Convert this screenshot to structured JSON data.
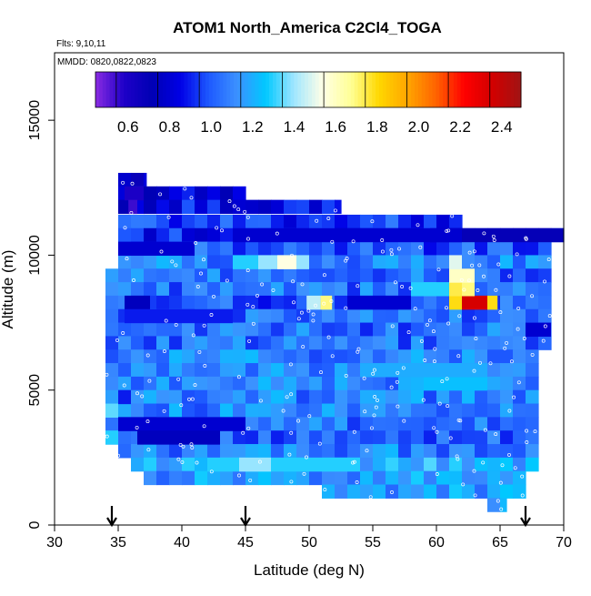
{
  "chart_data": {
    "type": "heatmap",
    "title": "ATOM1 North_America C2Cl4_TOGA",
    "annotations": [
      "Flts: 9,10,11",
      "MMDD: 0820,0822,0823"
    ],
    "xlabel": "Latitude (deg N)",
    "ylabel": "Altitude (m)",
    "xlim": [
      30,
      70
    ],
    "ylim": [
      0,
      17500
    ],
    "xticks": [
      30,
      35,
      40,
      45,
      50,
      55,
      60,
      65,
      70
    ],
    "yticks": [
      0,
      5000,
      10000,
      15000
    ],
    "grid": false,
    "colorbar": {
      "placement": "top",
      "min": 0.5,
      "max": 2.55,
      "ticks": [
        "0.6",
        "0.8",
        "1.0",
        "1.2",
        "1.4",
        "1.6",
        "1.8",
        "2.0",
        "2.2",
        "2.4"
      ],
      "tick_values": [
        0.6,
        0.8,
        1.0,
        1.2,
        1.4,
        1.6,
        1.8,
        2.0,
        2.2,
        2.4
      ],
      "colors": [
        "#8a2be2",
        "#1e00c8",
        "#0000b4",
        "#0000e6",
        "#1e5aff",
        "#3c91ff",
        "#00c8ff",
        "#a0e6ff",
        "#ffffe6",
        "#ffff96",
        "#ffd700",
        "#ffa500",
        "#ff6400",
        "#ff0000",
        "#d20000",
        "#a01414"
      ]
    },
    "arrows_at_latitude": [
      34.5,
      45,
      67
    ],
    "altitude_bands": [
      {
        "alt": 12800,
        "lat": [
          35,
          37.2
        ],
        "value": 0.8
      },
      {
        "alt": 12300,
        "lat": [
          35,
          45
        ],
        "value": 0.9
      },
      {
        "alt": 11800,
        "lat": [
          35,
          52.5
        ],
        "value": 0.9
      },
      {
        "alt": 11250,
        "lat": [
          35,
          62
        ],
        "value": 1.0
      },
      {
        "alt": 10750,
        "lat": [
          35,
          70
        ],
        "value": 0.95
      },
      {
        "alt": 10250,
        "lat": [
          35,
          69
        ],
        "value": 1.05
      },
      {
        "alt": 9750,
        "lat": [
          35,
          69
        ],
        "value": 1.15
      },
      {
        "alt": 9250,
        "lat": [
          34,
          69
        ],
        "value": 1.1
      },
      {
        "alt": 8750,
        "lat": [
          34,
          69
        ],
        "value": 1.1
      },
      {
        "alt": 8250,
        "lat": [
          34,
          69
        ],
        "value": 1.05
      },
      {
        "alt": 7750,
        "lat": [
          34,
          69
        ],
        "value": 1.1
      },
      {
        "alt": 7250,
        "lat": [
          34,
          69
        ],
        "value": 1.1
      },
      {
        "alt": 6750,
        "lat": [
          34,
          69
        ],
        "value": 1.1
      },
      {
        "alt": 6250,
        "lat": [
          34,
          68
        ],
        "value": 1.15
      },
      {
        "alt": 5750,
        "lat": [
          34,
          68
        ],
        "value": 1.15
      },
      {
        "alt": 5250,
        "lat": [
          34,
          68
        ],
        "value": 1.15
      },
      {
        "alt": 4750,
        "lat": [
          34,
          68
        ],
        "value": 1.15
      },
      {
        "alt": 4250,
        "lat": [
          34,
          68
        ],
        "value": 1.15
      },
      {
        "alt": 3750,
        "lat": [
          34,
          68
        ],
        "value": 1.1
      },
      {
        "alt": 3250,
        "lat": [
          34,
          68
        ],
        "value": 1.05
      },
      {
        "alt": 2750,
        "lat": [
          35,
          68
        ],
        "value": 1.15
      },
      {
        "alt": 2250,
        "lat": [
          36,
          68
        ],
        "value": 1.25
      },
      {
        "alt": 1750,
        "lat": [
          37,
          67
        ],
        "value": 1.2
      },
      {
        "alt": 1250,
        "lat": [
          51,
          67
        ],
        "value": 1.2
      },
      {
        "alt": 750,
        "lat": [
          64,
          65.5
        ],
        "value": 1.2
      }
    ],
    "highlights": [
      {
        "alt": 8250,
        "lat": [
          62,
          64
        ],
        "value": 2.4
      },
      {
        "alt": 8250,
        "lat": [
          61,
          62
        ],
        "value": 1.85
      },
      {
        "alt": 8250,
        "lat": [
          64,
          64.8
        ],
        "value": 1.85
      },
      {
        "alt": 8750,
        "lat": [
          61,
          62
        ],
        "value": 1.8
      },
      {
        "alt": 8750,
        "lat": [
          62,
          63
        ],
        "value": 1.75
      },
      {
        "alt": 9250,
        "lat": [
          61,
          63
        ],
        "value": 1.65
      },
      {
        "alt": 9750,
        "lat": [
          61,
          62
        ],
        "value": 1.55
      },
      {
        "alt": 8750,
        "lat": [
          58,
          61
        ],
        "value": 1.35
      },
      {
        "alt": 8250,
        "lat": [
          49.8,
          50.9
        ],
        "value": 1.5
      },
      {
        "alt": 8250,
        "lat": [
          50.9,
          51.8
        ],
        "value": 1.75
      },
      {
        "alt": 9750,
        "lat": [
          46,
          50
        ],
        "value": 1.45
      },
      {
        "alt": 9750,
        "lat": [
          47.5,
          49
        ],
        "value": 1.6
      },
      {
        "alt": 9750,
        "lat": [
          44,
          46
        ],
        "value": 1.35
      },
      {
        "alt": 2250,
        "lat": [
          42,
          54
        ],
        "value": 1.35
      },
      {
        "alt": 2250,
        "lat": [
          44.5,
          47
        ],
        "value": 1.45
      },
      {
        "alt": 5250,
        "lat": [
          59,
          64
        ],
        "value": 1.3
      },
      {
        "alt": 5750,
        "lat": [
          54,
          64
        ],
        "value": 1.25
      },
      {
        "alt": 12300,
        "lat": [
          35.5,
          37
        ],
        "value": 0.65
      },
      {
        "alt": 11800,
        "lat": [
          35.8,
          36.5
        ],
        "value": 0.6
      },
      {
        "alt": 10750,
        "lat": [
          59.5,
          70
        ],
        "value": 0.75
      },
      {
        "alt": 10250,
        "lat": [
          35,
          41
        ],
        "value": 0.85
      },
      {
        "alt": 10750,
        "lat": [
          44,
          62
        ],
        "value": 0.85
      },
      {
        "alt": 8250,
        "lat": [
          35.5,
          37.5
        ],
        "value": 0.8
      },
      {
        "alt": 7750,
        "lat": [
          35.5,
          44
        ],
        "value": 0.95
      },
      {
        "alt": 8250,
        "lat": [
          53,
          58
        ],
        "value": 0.85
      },
      {
        "alt": 7250,
        "lat": [
          67,
          69
        ],
        "value": 0.85
      },
      {
        "alt": 3750,
        "lat": [
          35,
          45
        ],
        "value": 0.85
      },
      {
        "alt": 3250,
        "lat": [
          36.5,
          43
        ],
        "value": 0.8
      },
      {
        "alt": 4750,
        "lat": [
          35,
          36
        ],
        "value": 0.95
      },
      {
        "alt": 4250,
        "lat": [
          34,
          35
        ],
        "value": 1.4
      },
      {
        "alt": 3250,
        "lat": [
          34,
          35
        ],
        "value": 1.35
      }
    ]
  }
}
